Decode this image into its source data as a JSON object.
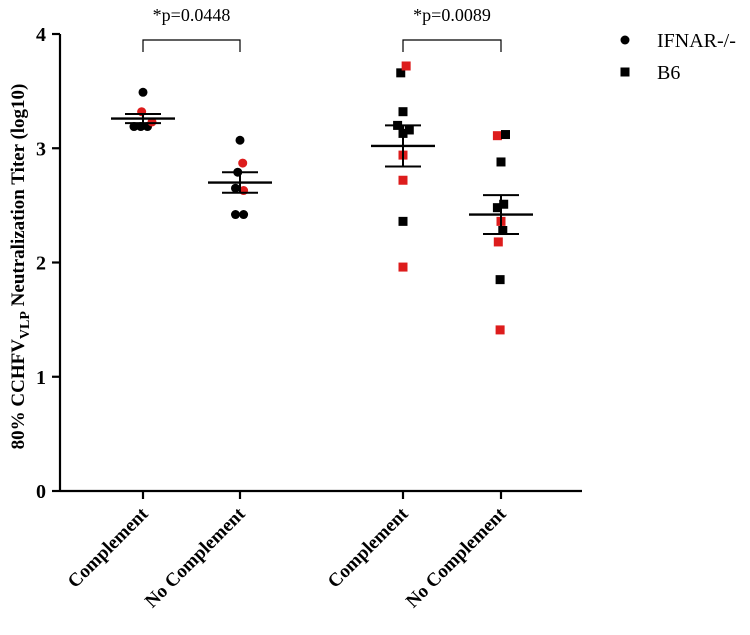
{
  "chart_data": {
    "type": "scatter",
    "ylabel_parts": [
      "80% CCHFV",
      "VLP",
      " Neutralization Titer (log10)"
    ],
    "ylim": [
      0,
      4
    ],
    "yticks": [
      "0",
      "1",
      "2",
      "3",
      "4"
    ],
    "categories": [
      "Complement",
      "No Complement",
      "Complement",
      "No Complement"
    ],
    "colors": {
      "black": "#000000",
      "red": "#dd1c1c"
    },
    "legend": {
      "position": "top-right",
      "entries": [
        {
          "name": "IFNAR-/-",
          "marker": "circle"
        },
        {
          "name": "B6",
          "marker": "square"
        }
      ]
    },
    "comparisons": [
      {
        "groups": [
          0,
          1
        ],
        "label": "*p=0.0448"
      },
      {
        "groups": [
          2,
          3
        ],
        "label": "*p=0.0089"
      }
    ],
    "series": [
      {
        "name": "IFNAR-/- Complement",
        "category": 0,
        "marker": "circle",
        "mean": 3.26,
        "sem": 0.04,
        "points": [
          {
            "x": -0.2,
            "y": 3.19,
            "color": "black"
          },
          {
            "x": -0.05,
            "y": 3.19,
            "color": "black"
          },
          {
            "x": 0.1,
            "y": 3.19,
            "color": "black"
          },
          {
            "x": 0.0,
            "y": 3.49,
            "color": "black"
          },
          {
            "x": -0.03,
            "y": 3.32,
            "color": "red"
          },
          {
            "x": 0.2,
            "y": 3.23,
            "color": "red"
          }
        ]
      },
      {
        "name": "IFNAR-/- No Complement",
        "category": 1,
        "marker": "circle",
        "mean": 2.7,
        "sem": 0.09,
        "points": [
          {
            "x": 0.0,
            "y": 3.07,
            "color": "black"
          },
          {
            "x": -0.05,
            "y": 2.79,
            "color": "black"
          },
          {
            "x": 0.06,
            "y": 2.87,
            "color": "red"
          },
          {
            "x": -0.1,
            "y": 2.65,
            "color": "black"
          },
          {
            "x": 0.08,
            "y": 2.63,
            "color": "red"
          },
          {
            "x": -0.1,
            "y": 2.42,
            "color": "black"
          },
          {
            "x": 0.08,
            "y": 2.42,
            "color": "black"
          }
        ]
      },
      {
        "name": "B6 Complement",
        "category": 2,
        "marker": "square",
        "mean": 3.02,
        "sem": 0.18,
        "points": [
          {
            "x": -0.05,
            "y": 3.66,
            "color": "black"
          },
          {
            "x": 0.07,
            "y": 3.72,
            "color": "red"
          },
          {
            "x": 0.0,
            "y": 3.32,
            "color": "black"
          },
          {
            "x": -0.12,
            "y": 3.2,
            "color": "black"
          },
          {
            "x": 0.14,
            "y": 3.16,
            "color": "black"
          },
          {
            "x": 0.0,
            "y": 3.13,
            "color": "black"
          },
          {
            "x": 0.0,
            "y": 2.94,
            "color": "red"
          },
          {
            "x": 0.0,
            "y": 2.72,
            "color": "red"
          },
          {
            "x": 0.0,
            "y": 2.36,
            "color": "black"
          },
          {
            "x": 0.0,
            "y": 1.96,
            "color": "red"
          }
        ]
      },
      {
        "name": "B6 No Complement",
        "category": 3,
        "marker": "square",
        "mean": 2.42,
        "sem": 0.17,
        "points": [
          {
            "x": -0.08,
            "y": 3.11,
            "color": "red"
          },
          {
            "x": 0.1,
            "y": 3.12,
            "color": "black"
          },
          {
            "x": 0.0,
            "y": 2.88,
            "color": "black"
          },
          {
            "x": -0.08,
            "y": 2.48,
            "color": "black"
          },
          {
            "x": 0.06,
            "y": 2.51,
            "color": "black"
          },
          {
            "x": 0.0,
            "y": 2.36,
            "color": "red"
          },
          {
            "x": 0.04,
            "y": 2.28,
            "color": "black"
          },
          {
            "x": -0.06,
            "y": 2.18,
            "color": "red"
          },
          {
            "x": -0.02,
            "y": 1.85,
            "color": "black"
          },
          {
            "x": -0.02,
            "y": 1.41,
            "color": "red"
          }
        ]
      }
    ]
  }
}
